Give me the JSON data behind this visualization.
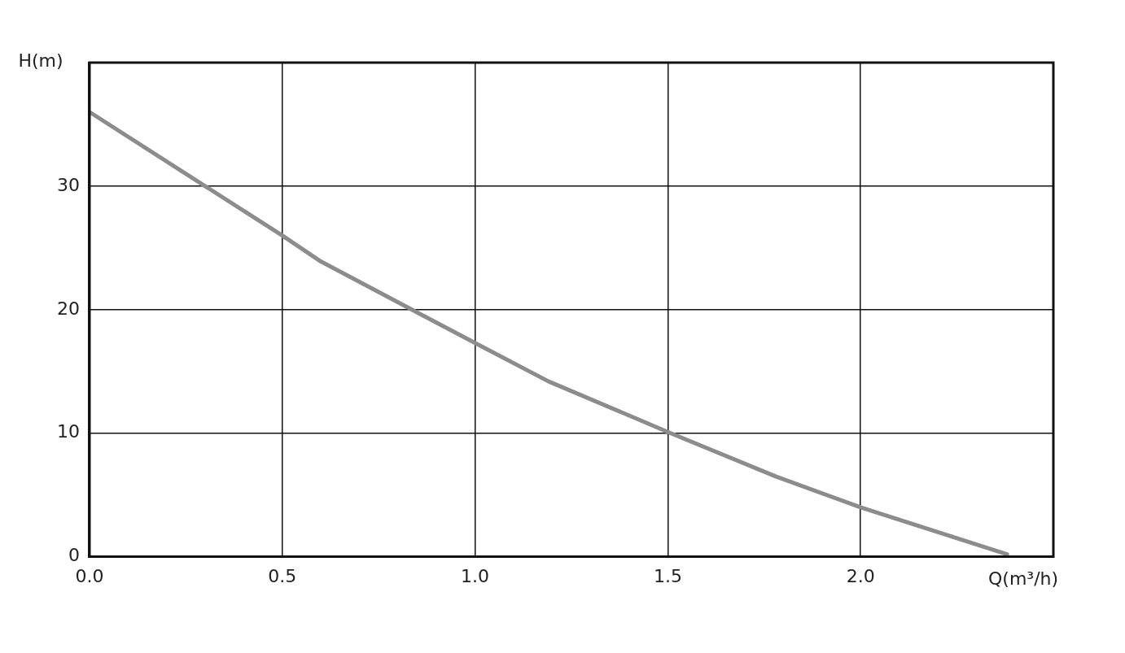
{
  "chart_data": {
    "type": "line",
    "xlabel": "Q(m³/h)",
    "ylabel": "H(m)",
    "x": [
      0,
      0.5,
      0.6,
      1.0,
      1.19,
      1.5,
      1.78,
      2.0,
      2.38
    ],
    "series": [
      {
        "color": "#8c8c8c",
        "values": [
          36,
          26,
          23.9,
          17.3,
          14.2,
          10.1,
          6.5,
          4.0,
          0.2
        ]
      }
    ],
    "xlim": [
      0,
      2.5
    ],
    "ylim": [
      0,
      40
    ],
    "xticks": [
      {
        "value": 0,
        "label": "0.0"
      },
      {
        "value": 0.5,
        "label": "0.5"
      },
      {
        "value": 1,
        "label": "1.0"
      },
      {
        "value": 1.5,
        "label": "1.5"
      },
      {
        "value": 2,
        "label": "2.0"
      }
    ],
    "yticks": [
      0,
      10,
      20,
      30
    ],
    "grid": true,
    "legend": false,
    "marker": "none",
    "line_style": "solid"
  }
}
